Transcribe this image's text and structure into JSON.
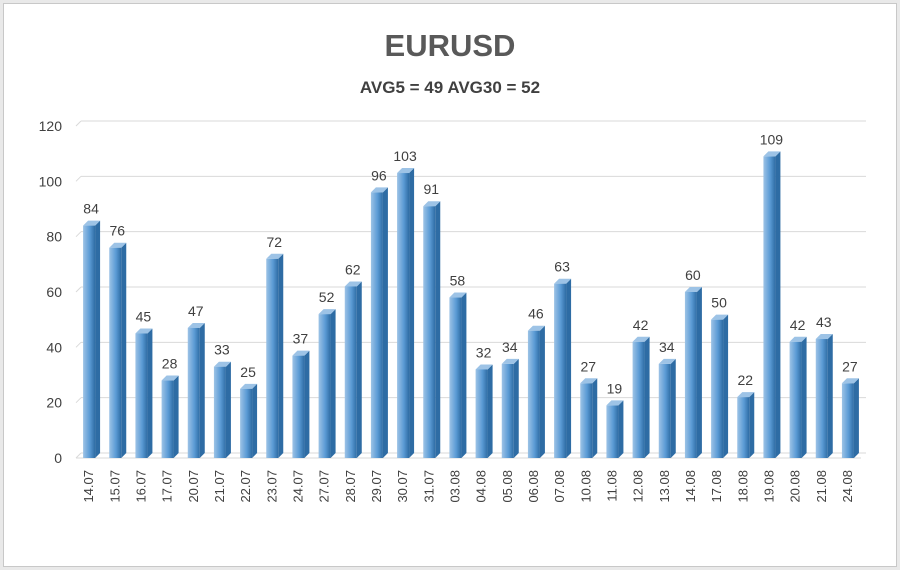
{
  "chart_data": {
    "type": "bar",
    "title": "EURUSD",
    "subtitle": "AVG5 = 49 AVG30 = 52",
    "categories": [
      "14.07",
      "15.07",
      "16.07",
      "17.07",
      "20.07",
      "21.07",
      "22.07",
      "23.07",
      "24.07",
      "27.07",
      "28.07",
      "29.07",
      "30.07",
      "31.07",
      "03.08",
      "04.08",
      "05.08",
      "06.08",
      "07.08",
      "10.08",
      "11.08",
      "12.08",
      "13.08",
      "14.08",
      "17.08",
      "18.08",
      "19.08",
      "20.08",
      "21.08",
      "24.08"
    ],
    "values": [
      84,
      76,
      45,
      28,
      47,
      33,
      25,
      72,
      37,
      52,
      62,
      96,
      103,
      91,
      58,
      32,
      34,
      46,
      63,
      27,
      19,
      42,
      34,
      60,
      50,
      22,
      109,
      42,
      43,
      27
    ],
    "ylim": [
      0,
      120
    ],
    "yticks": [
      0,
      20,
      40,
      60,
      80,
      100,
      120
    ],
    "grid": true,
    "legend": "none",
    "data_labels": true,
    "colors": {
      "bar_light": "#9dc3e6",
      "bar_mid": "#5b9bd5",
      "bar_dark": "#2e6ca4",
      "grid": "#d9d9d9",
      "text": "#404040"
    }
  }
}
